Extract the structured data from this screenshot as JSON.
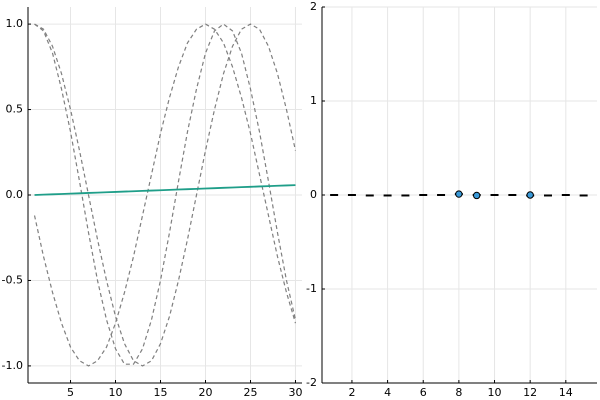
{
  "chart_data": [
    {
      "type": "line",
      "x": [
        1,
        2,
        3,
        4,
        5,
        6,
        7,
        8,
        9,
        10,
        11,
        12,
        13,
        14,
        15,
        16,
        17,
        18,
        19,
        20,
        21,
        22,
        23,
        24,
        25,
        26,
        27,
        28,
        29,
        30
      ],
      "xlim": [
        0.275,
        30.725
      ],
      "xticks": [
        5,
        10,
        15,
        20,
        25,
        30
      ],
      "ylim": [
        -1.1,
        1.1
      ],
      "yticks": [
        {
          "value": -1,
          "label": "-1.0"
        },
        {
          "value": -0.5,
          "label": "-0.5"
        },
        {
          "value": 0,
          "label": "0.0"
        },
        {
          "value": 0.5,
          "label": "0.5"
        },
        {
          "value": 1,
          "label": "1.0"
        }
      ],
      "grid": true,
      "series": [
        {
          "color": "#7f7f7f",
          "linestyle": "dashed",
          "values": [
            1.0,
            0.96,
            0.83,
            0.62,
            0.37,
            0.08,
            -0.22,
            -0.5,
            -0.73,
            -0.9,
            -0.99,
            -0.99,
            -0.9,
            -0.73,
            -0.5,
            -0.22,
            0.08,
            0.37,
            0.62,
            0.83,
            0.96,
            1.0,
            0.96,
            0.83,
            0.62,
            0.37,
            0.08,
            -0.22,
            -0.5,
            -0.73
          ]
        },
        {
          "color": "#7f7f7f",
          "linestyle": "dashed",
          "values": [
            1.0,
            0.97,
            0.87,
            0.71,
            0.5,
            0.26,
            0.0,
            -0.26,
            -0.5,
            -0.71,
            -0.87,
            -0.97,
            -1.0,
            -0.97,
            -0.87,
            -0.71,
            -0.5,
            -0.26,
            0.0,
            0.26,
            0.5,
            0.71,
            0.87,
            0.97,
            1.0,
            0.97,
            0.87,
            0.71,
            0.5,
            0.26
          ]
        },
        {
          "color": "#7f7f7f",
          "linestyle": "dashed",
          "values": [
            -0.12,
            -0.36,
            -0.57,
            -0.75,
            -0.89,
            -0.97,
            -1.0,
            -0.97,
            -0.89,
            -0.75,
            -0.57,
            -0.36,
            -0.12,
            0.12,
            0.36,
            0.57,
            0.75,
            0.89,
            0.97,
            1.0,
            0.97,
            0.89,
            0.75,
            0.57,
            0.36,
            0.12,
            -0.12,
            -0.36,
            -0.57,
            -0.75
          ]
        },
        {
          "color": "#1f9e89",
          "linestyle": "solid",
          "values": [
            0.0,
            0.002,
            0.004,
            0.006,
            0.008,
            0.01,
            0.012,
            0.014,
            0.016,
            0.018,
            0.02,
            0.022,
            0.024,
            0.026,
            0.028,
            0.03,
            0.032,
            0.034,
            0.036,
            0.038,
            0.04,
            0.042,
            0.044,
            0.046,
            0.048,
            0.05,
            0.052,
            0.054,
            0.056,
            0.058
          ]
        }
      ]
    },
    {
      "type": "scatter",
      "xlim": [
        0.32,
        15.75
      ],
      "xticks": [
        2,
        4,
        6,
        8,
        10,
        12,
        14
      ],
      "ylim": [
        -2,
        2
      ],
      "yticks": [
        -2,
        -1,
        0,
        1,
        2
      ],
      "grid": true,
      "series": [
        {
          "color": "#000000",
          "marker": "hline",
          "x": [
            1,
            2,
            3,
            4,
            5,
            6,
            7,
            8,
            9,
            10,
            11,
            12,
            13,
            14,
            15
          ],
          "values": [
            0,
            0,
            -0.005,
            -0.005,
            -0.005,
            0,
            0,
            0.01,
            0,
            0,
            0,
            -0.005,
            -0.005,
            0,
            -0.005
          ]
        },
        {
          "color": "#3a9ad9",
          "marker": "circle",
          "x": [
            8,
            9,
            12
          ],
          "values": [
            0.01,
            -0.005,
            0
          ]
        }
      ]
    }
  ]
}
